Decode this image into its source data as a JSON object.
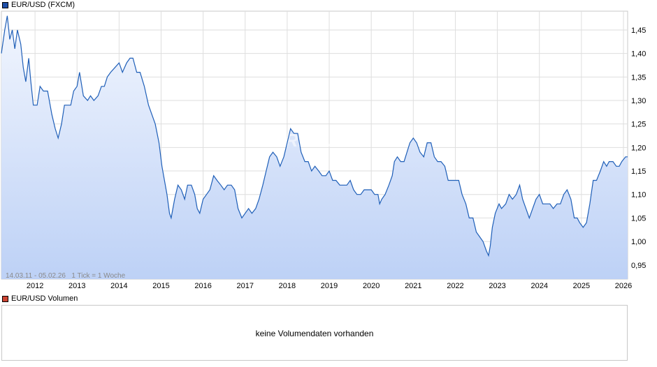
{
  "price_legend": {
    "label": "EUR/USD (FXCM)",
    "color": "#1f4fa8"
  },
  "range_note": "14.03.11 - 05.02.26   1 Tick = 1 Woche",
  "watermark": "ARIVA.DE",
  "volume_legend": {
    "label": "EUR/USD Volumen",
    "color": "#cc4433"
  },
  "volume_message": "keine Volumendaten vorhanden",
  "colors": {
    "line": "#1f5fb8",
    "fill_top": "#f2f6fe",
    "fill_bottom": "#bdd1f6",
    "grid": "#dedede"
  },
  "chart_data": {
    "type": "area",
    "series_name": "EUR/USD (FXCM)",
    "x_unit": "year",
    "xlim": [
      2011.2,
      2026.1
    ],
    "ylim": [
      0.92,
      1.49
    ],
    "y_ticks": [
      "0,95",
      "1,00",
      "1,05",
      "1,10",
      "1,15",
      "1,20",
      "1,25",
      "1,30",
      "1,35",
      "1,40",
      "1,45"
    ],
    "x_ticks": [
      "2012",
      "2013",
      "2014",
      "2015",
      "2016",
      "2017",
      "2018",
      "2019",
      "2020",
      "2021",
      "2022",
      "2023",
      "2024",
      "2025",
      "2026"
    ],
    "grid": true,
    "points": [
      [
        2011.2,
        1.4
      ],
      [
        2011.28,
        1.45
      ],
      [
        2011.34,
        1.48
      ],
      [
        2011.4,
        1.43
      ],
      [
        2011.46,
        1.45
      ],
      [
        2011.52,
        1.41
      ],
      [
        2011.58,
        1.45
      ],
      [
        2011.66,
        1.42
      ],
      [
        2011.72,
        1.37
      ],
      [
        2011.78,
        1.34
      ],
      [
        2011.85,
        1.39
      ],
      [
        2011.9,
        1.34
      ],
      [
        2011.96,
        1.29
      ],
      [
        2012.05,
        1.29
      ],
      [
        2012.12,
        1.33
      ],
      [
        2012.2,
        1.32
      ],
      [
        2012.3,
        1.32
      ],
      [
        2012.4,
        1.27
      ],
      [
        2012.48,
        1.24
      ],
      [
        2012.55,
        1.22
      ],
      [
        2012.63,
        1.25
      ],
      [
        2012.7,
        1.29
      ],
      [
        2012.78,
        1.29
      ],
      [
        2012.85,
        1.29
      ],
      [
        2012.92,
        1.32
      ],
      [
        2013.0,
        1.33
      ],
      [
        2013.06,
        1.36
      ],
      [
        2013.15,
        1.31
      ],
      [
        2013.25,
        1.3
      ],
      [
        2013.32,
        1.31
      ],
      [
        2013.4,
        1.3
      ],
      [
        2013.5,
        1.31
      ],
      [
        2013.58,
        1.33
      ],
      [
        2013.65,
        1.33
      ],
      [
        2013.72,
        1.35
      ],
      [
        2013.8,
        1.36
      ],
      [
        2013.9,
        1.37
      ],
      [
        2014.0,
        1.38
      ],
      [
        2014.08,
        1.36
      ],
      [
        2014.18,
        1.38
      ],
      [
        2014.26,
        1.39
      ],
      [
        2014.33,
        1.39
      ],
      [
        2014.42,
        1.36
      ],
      [
        2014.5,
        1.36
      ],
      [
        2014.6,
        1.33
      ],
      [
        2014.7,
        1.29
      ],
      [
        2014.78,
        1.27
      ],
      [
        2014.86,
        1.25
      ],
      [
        2014.95,
        1.21
      ],
      [
        2015.02,
        1.16
      ],
      [
        2015.08,
        1.13
      ],
      [
        2015.14,
        1.1
      ],
      [
        2015.2,
        1.06
      ],
      [
        2015.24,
        1.05
      ],
      [
        2015.32,
        1.09
      ],
      [
        2015.4,
        1.12
      ],
      [
        2015.48,
        1.11
      ],
      [
        2015.56,
        1.09
      ],
      [
        2015.63,
        1.12
      ],
      [
        2015.72,
        1.12
      ],
      [
        2015.8,
        1.1
      ],
      [
        2015.86,
        1.07
      ],
      [
        2015.92,
        1.06
      ],
      [
        2016.0,
        1.09
      ],
      [
        2016.08,
        1.1
      ],
      [
        2016.16,
        1.11
      ],
      [
        2016.25,
        1.14
      ],
      [
        2016.33,
        1.13
      ],
      [
        2016.42,
        1.12
      ],
      [
        2016.5,
        1.11
      ],
      [
        2016.58,
        1.12
      ],
      [
        2016.67,
        1.12
      ],
      [
        2016.75,
        1.11
      ],
      [
        2016.83,
        1.07
      ],
      [
        2016.92,
        1.05
      ],
      [
        2017.0,
        1.06
      ],
      [
        2017.08,
        1.07
      ],
      [
        2017.16,
        1.06
      ],
      [
        2017.25,
        1.07
      ],
      [
        2017.33,
        1.09
      ],
      [
        2017.42,
        1.12
      ],
      [
        2017.5,
        1.15
      ],
      [
        2017.58,
        1.18
      ],
      [
        2017.66,
        1.19
      ],
      [
        2017.75,
        1.18
      ],
      [
        2017.83,
        1.16
      ],
      [
        2017.92,
        1.18
      ],
      [
        2018.0,
        1.21
      ],
      [
        2018.08,
        1.24
      ],
      [
        2018.16,
        1.23
      ],
      [
        2018.25,
        1.23
      ],
      [
        2018.33,
        1.19
      ],
      [
        2018.42,
        1.17
      ],
      [
        2018.5,
        1.17
      ],
      [
        2018.58,
        1.15
      ],
      [
        2018.66,
        1.16
      ],
      [
        2018.75,
        1.15
      ],
      [
        2018.83,
        1.14
      ],
      [
        2018.92,
        1.14
      ],
      [
        2019.0,
        1.15
      ],
      [
        2019.08,
        1.13
      ],
      [
        2019.16,
        1.13
      ],
      [
        2019.25,
        1.12
      ],
      [
        2019.33,
        1.12
      ],
      [
        2019.42,
        1.12
      ],
      [
        2019.5,
        1.13
      ],
      [
        2019.58,
        1.11
      ],
      [
        2019.66,
        1.1
      ],
      [
        2019.75,
        1.1
      ],
      [
        2019.83,
        1.11
      ],
      [
        2019.92,
        1.11
      ],
      [
        2020.0,
        1.11
      ],
      [
        2020.08,
        1.1
      ],
      [
        2020.16,
        1.1
      ],
      [
        2020.2,
        1.08
      ],
      [
        2020.25,
        1.09
      ],
      [
        2020.33,
        1.1
      ],
      [
        2020.42,
        1.12
      ],
      [
        2020.5,
        1.14
      ],
      [
        2020.55,
        1.17
      ],
      [
        2020.62,
        1.18
      ],
      [
        2020.7,
        1.17
      ],
      [
        2020.78,
        1.17
      ],
      [
        2020.85,
        1.19
      ],
      [
        2020.92,
        1.21
      ],
      [
        2021.0,
        1.22
      ],
      [
        2021.08,
        1.21
      ],
      [
        2021.16,
        1.19
      ],
      [
        2021.25,
        1.18
      ],
      [
        2021.33,
        1.21
      ],
      [
        2021.42,
        1.21
      ],
      [
        2021.5,
        1.18
      ],
      [
        2021.58,
        1.17
      ],
      [
        2021.66,
        1.17
      ],
      [
        2021.75,
        1.16
      ],
      [
        2021.83,
        1.13
      ],
      [
        2021.92,
        1.13
      ],
      [
        2022.0,
        1.13
      ],
      [
        2022.08,
        1.13
      ],
      [
        2022.16,
        1.1
      ],
      [
        2022.25,
        1.08
      ],
      [
        2022.33,
        1.05
      ],
      [
        2022.42,
        1.05
      ],
      [
        2022.5,
        1.02
      ],
      [
        2022.58,
        1.01
      ],
      [
        2022.66,
        1.0
      ],
      [
        2022.74,
        0.98
      ],
      [
        2022.79,
        0.97
      ],
      [
        2022.83,
        0.99
      ],
      [
        2022.88,
        1.03
      ],
      [
        2022.95,
        1.06
      ],
      [
        2023.04,
        1.08
      ],
      [
        2023.1,
        1.07
      ],
      [
        2023.2,
        1.08
      ],
      [
        2023.28,
        1.1
      ],
      [
        2023.36,
        1.09
      ],
      [
        2023.45,
        1.1
      ],
      [
        2023.53,
        1.12
      ],
      [
        2023.6,
        1.09
      ],
      [
        2023.68,
        1.07
      ],
      [
        2023.76,
        1.05
      ],
      [
        2023.84,
        1.07
      ],
      [
        2023.92,
        1.09
      ],
      [
        2024.0,
        1.1
      ],
      [
        2024.08,
        1.08
      ],
      [
        2024.16,
        1.08
      ],
      [
        2024.25,
        1.08
      ],
      [
        2024.33,
        1.07
      ],
      [
        2024.42,
        1.08
      ],
      [
        2024.5,
        1.08
      ],
      [
        2024.58,
        1.1
      ],
      [
        2024.66,
        1.11
      ],
      [
        2024.75,
        1.09
      ],
      [
        2024.83,
        1.05
      ],
      [
        2024.9,
        1.05
      ],
      [
        2024.96,
        1.04
      ],
      [
        2025.04,
        1.03
      ],
      [
        2025.12,
        1.04
      ],
      [
        2025.2,
        1.08
      ],
      [
        2025.28,
        1.13
      ],
      [
        2025.36,
        1.13
      ],
      [
        2025.45,
        1.15
      ],
      [
        2025.53,
        1.17
      ],
      [
        2025.6,
        1.16
      ],
      [
        2025.66,
        1.17
      ],
      [
        2025.75,
        1.17
      ],
      [
        2025.83,
        1.16
      ],
      [
        2025.9,
        1.16
      ],
      [
        2025.96,
        1.17
      ],
      [
        2026.05,
        1.18
      ],
      [
        2026.1,
        1.18
      ]
    ]
  }
}
